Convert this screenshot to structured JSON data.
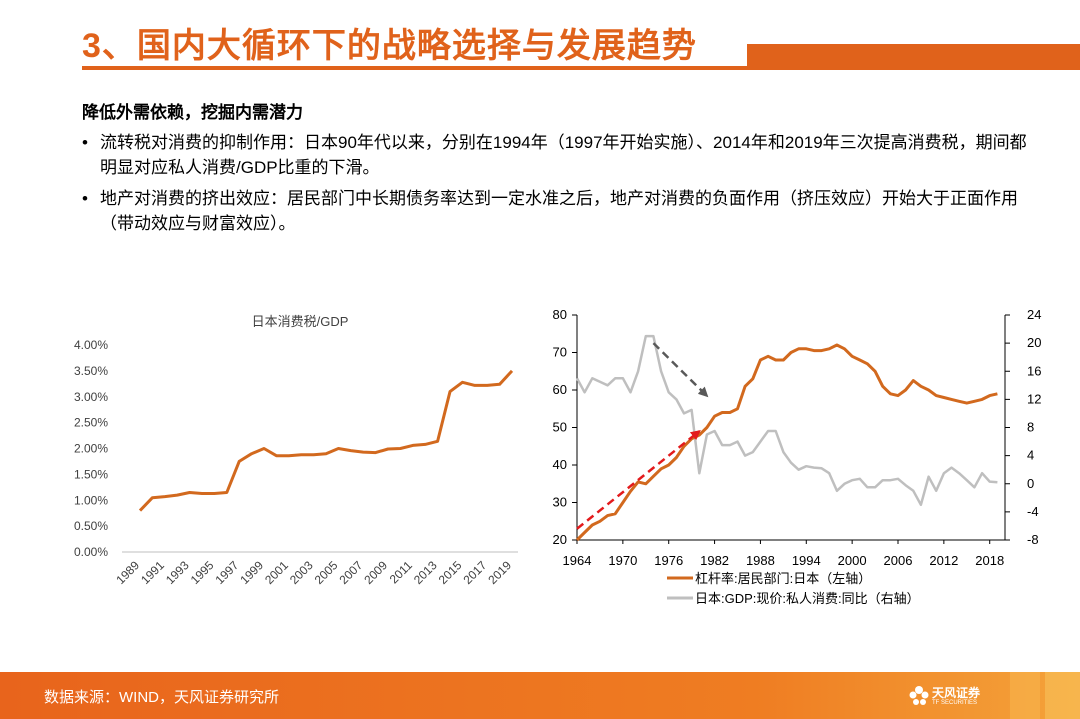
{
  "page": {
    "title": "3、国内大循环下的战略选择与发展趋势",
    "subheading": "降低外需依赖，挖掘内需潜力",
    "bullets": [
      "流转税对消费的抑制作用：日本90年代以来，分别在1994年（1997年开始实施）、2014年和2019年三次提高消费税，期间都明显对应私人消费/GDP比重的下滑。",
      "地产对消费的挤出效应：居民部门中长期债务率达到一定水准之后，地产对消费的负面作用（挤压效应）开始大于正面作用（带动效应与财富效应）。"
    ],
    "bullet_symbol": "•",
    "footer_source": "数据来源：WIND，天风证券研究所",
    "logo": {
      "name": "天风证券",
      "sub": "TF SECURITIES"
    }
  },
  "colors": {
    "accent": "#e0621b",
    "series_orange": "#d2691e",
    "series_gray": "#bfbfbf",
    "arrow_gray": "#595959",
    "arrow_red": "#e31a1c"
  },
  "chart_data": [
    {
      "type": "line",
      "title": "日本消费税/GDP",
      "x": [
        "1989",
        "1990",
        "1991",
        "1992",
        "1993",
        "1994",
        "1995",
        "1996",
        "1997",
        "1998",
        "1999",
        "2000",
        "2001",
        "2002",
        "2003",
        "2004",
        "2005",
        "2006",
        "2007",
        "2008",
        "2009",
        "2010",
        "2011",
        "2012",
        "2013",
        "2014",
        "2015",
        "2016",
        "2017",
        "2018",
        "2019"
      ],
      "x_tick_labels": [
        "1989",
        "1991",
        "1993",
        "1995",
        "1997",
        "1999",
        "2001",
        "2003",
        "2005",
        "2007",
        "2009",
        "2011",
        "2013",
        "2015",
        "2017",
        "2019"
      ],
      "series": [
        {
          "values": [
            0.8,
            1.05,
            1.07,
            1.1,
            1.15,
            1.13,
            1.13,
            1.15,
            1.75,
            1.9,
            2.0,
            1.86,
            1.86,
            1.88,
            1.88,
            1.9,
            2.0,
            1.96,
            1.93,
            1.92,
            1.99,
            2.0,
            2.06,
            2.08,
            2.14,
            3.1,
            3.28,
            3.22,
            3.22,
            3.24,
            3.5
          ]
        }
      ],
      "ylim": [
        0,
        4
      ],
      "y_tick_labels": [
        "0.00%",
        "0.50%",
        "1.00%",
        "1.50%",
        "2.00%",
        "2.50%",
        "3.00%",
        "3.50%",
        "4.00%"
      ],
      "grid": false
    },
    {
      "type": "line",
      "xlim": [
        1964,
        2020
      ],
      "x_tick_labels": [
        "1964",
        "1970",
        "1976",
        "1982",
        "1988",
        "1994",
        "2000",
        "2006",
        "2012",
        "2018"
      ],
      "y_left": {
        "lim": [
          20,
          80
        ],
        "tick_labels": [
          "20",
          "30",
          "40",
          "50",
          "60",
          "70",
          "80"
        ]
      },
      "y_right": {
        "lim": [
          -8,
          24
        ],
        "tick_labels": [
          "-8",
          "-4",
          "0",
          "4",
          "8",
          "12",
          "16",
          "20",
          "24"
        ]
      },
      "legend_position": "bottom",
      "series": [
        {
          "name": "杠杆率:居民部门:日本（左轴）",
          "axis": "left",
          "x": [
            1964,
            1965,
            1966,
            1967,
            1968,
            1969,
            1970,
            1971,
            1972,
            1973,
            1974,
            1975,
            1976,
            1977,
            1978,
            1979,
            1980,
            1981,
            1982,
            1983,
            1984,
            1985,
            1986,
            1987,
            1988,
            1989,
            1990,
            1991,
            1992,
            1993,
            1994,
            1995,
            1996,
            1997,
            1998,
            1999,
            2000,
            2001,
            2002,
            2003,
            2004,
            2005,
            2006,
            2007,
            2008,
            2009,
            2010,
            2011,
            2012,
            2013,
            2014,
            2015,
            2016,
            2017,
            2018,
            2019
          ],
          "values": [
            20,
            22,
            24,
            25,
            26.5,
            27,
            30,
            33,
            35.5,
            35,
            37,
            39,
            40,
            42,
            45,
            47,
            48,
            50,
            53,
            54,
            54,
            55,
            61,
            63,
            68,
            69,
            68,
            68,
            70,
            71,
            71,
            70.5,
            70.5,
            71,
            72,
            71,
            69,
            68,
            67,
            65,
            61,
            59,
            58.5,
            60,
            62.5,
            61,
            60,
            58.5,
            58,
            57.5,
            57,
            56.5,
            57,
            57.5,
            58.5,
            59
          ]
        },
        {
          "name": "日本:GDP:现价:私人消费:同比（右轴）",
          "axis": "right",
          "x": [
            1964,
            1965,
            1966,
            1967,
            1968,
            1969,
            1970,
            1971,
            1972,
            1973,
            1974,
            1975,
            1976,
            1977,
            1978,
            1979,
            1980,
            1981,
            1982,
            1983,
            1984,
            1985,
            1986,
            1987,
            1988,
            1989,
            1990,
            1991,
            1992,
            1993,
            1994,
            1995,
            1996,
            1997,
            1998,
            1999,
            2000,
            2001,
            2002,
            2003,
            2004,
            2005,
            2006,
            2007,
            2008,
            2009,
            2010,
            2011,
            2012,
            2013,
            2014,
            2015,
            2016,
            2017,
            2018,
            2019
          ],
          "values": [
            15,
            13,
            15,
            14.5,
            14,
            15,
            15,
            13,
            16,
            21,
            21,
            16,
            13,
            12,
            10,
            10.5,
            1.5,
            7,
            7.5,
            5.5,
            5.5,
            6,
            4,
            4.5,
            6,
            7.5,
            7.5,
            4.5,
            3,
            2,
            2.5,
            2.3,
            2.2,
            1.5,
            -1,
            0,
            0.5,
            0.7,
            -0.5,
            -0.5,
            0.5,
            0.5,
            0.7,
            -0.2,
            -1,
            -3,
            1,
            -1,
            1.5,
            2.3,
            1.5,
            0.5,
            -0.5,
            1.5,
            0.3,
            0.2
          ]
        }
      ],
      "annotations": [
        {
          "type": "arrow",
          "style": "dashed",
          "color": "gray",
          "from": [
            1974,
            20
          ],
          "to": [
            1981,
            12.5
          ],
          "axis": "right"
        },
        {
          "type": "arrow",
          "style": "dashed",
          "color": "red",
          "from": [
            1964,
            23
          ],
          "to": [
            1980,
            49
          ],
          "axis": "left"
        }
      ]
    }
  ]
}
